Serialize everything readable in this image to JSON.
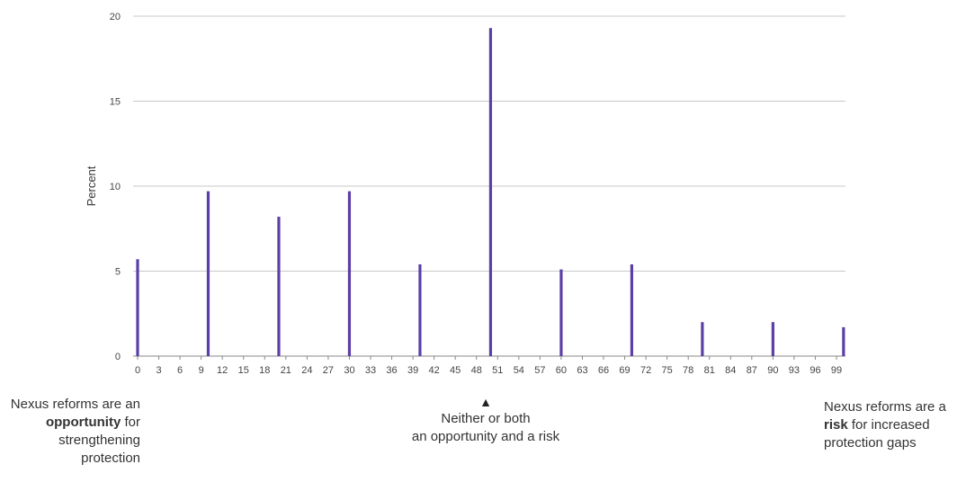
{
  "chart_data": {
    "type": "bar",
    "ylabel": "Percent",
    "xlabel": "",
    "ylim": [
      0,
      20
    ],
    "yticks": [
      0,
      5,
      10,
      15,
      20
    ],
    "xlim": [
      0,
      100
    ],
    "xticks": [
      0,
      3,
      6,
      9,
      12,
      15,
      18,
      21,
      24,
      27,
      30,
      33,
      36,
      39,
      42,
      45,
      48,
      51,
      54,
      57,
      60,
      63,
      66,
      69,
      72,
      75,
      78,
      81,
      84,
      87,
      90,
      93,
      96,
      99
    ],
    "grid": "horizontal",
    "bar_color": "#5b3fa6",
    "points": [
      {
        "x": 0,
        "value": 5.7
      },
      {
        "x": 10,
        "value": 9.7
      },
      {
        "x": 20,
        "value": 8.2
      },
      {
        "x": 30,
        "value": 9.7
      },
      {
        "x": 40,
        "value": 5.4
      },
      {
        "x": 50,
        "value": 19.3
      },
      {
        "x": 60,
        "value": 5.1
      },
      {
        "x": 70,
        "value": 5.4
      },
      {
        "x": 80,
        "value": 2.0
      },
      {
        "x": 90,
        "value": 2.0
      },
      {
        "x": 100,
        "value": 1.7
      }
    ]
  },
  "annotations": {
    "left": {
      "pre": "Nexus reforms are an ",
      "bold": "opportunity",
      "post": " for strengthening protection"
    },
    "center": {
      "marker": "▲",
      "line1": "Neither or both",
      "line2": "an opportunity and a risk"
    },
    "right": {
      "pre": "Nexus reforms are a ",
      "bold": "risk",
      "post": " for increased protection gaps"
    }
  }
}
